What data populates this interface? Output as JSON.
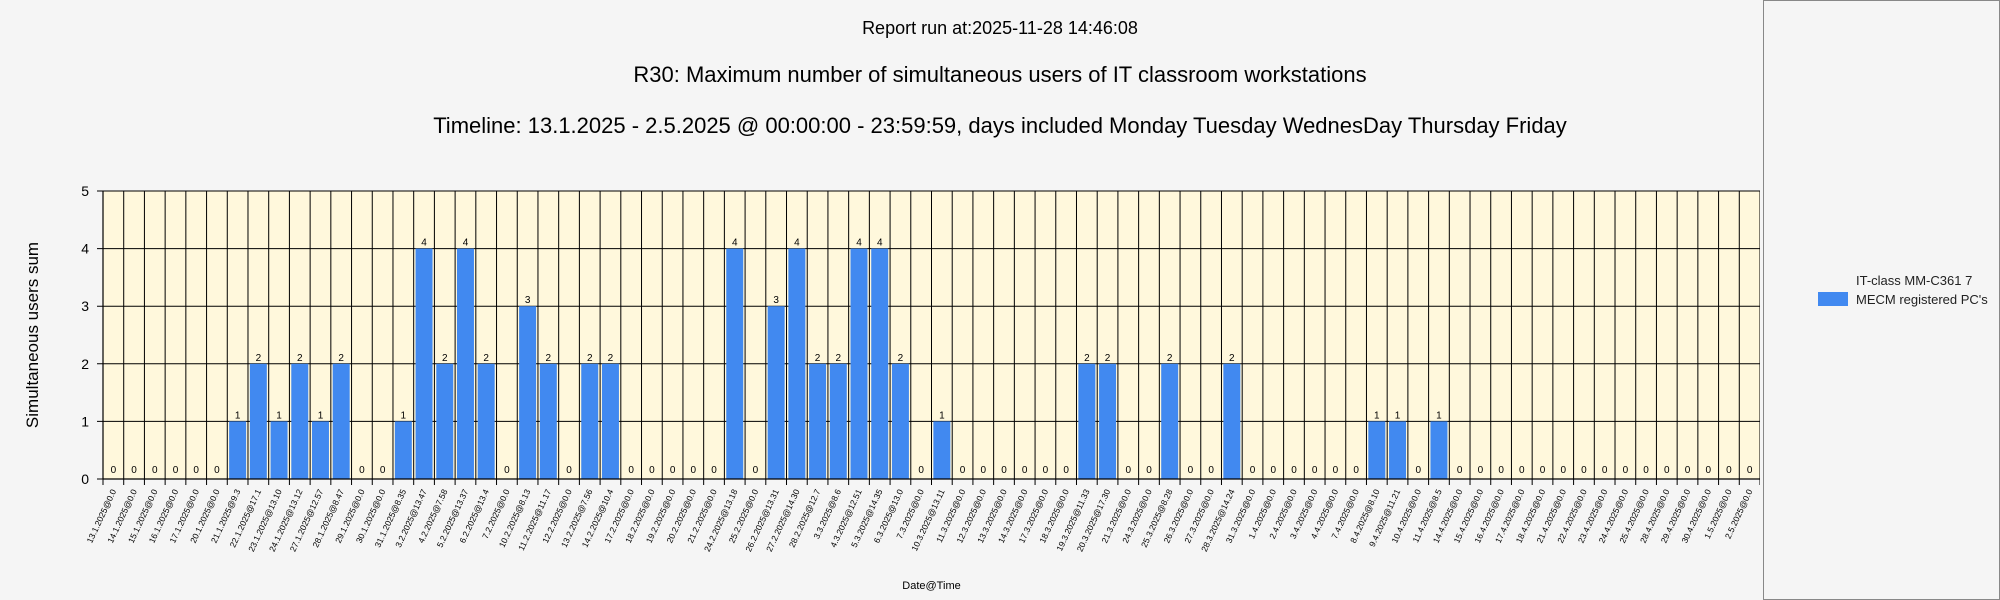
{
  "report_header": "Report run at:2025-11-28 14:46:08",
  "chart_data": {
    "type": "bar",
    "title": "R30: Maximum number of simultaneous users of IT classroom workstations",
    "subtitle": "Timeline: 13.1.2025  - 2.5.2025  @  00:00:00 -  23:59:59, days included Monday Tuesday WednesDay Thursday Friday",
    "xlabel": "Date@Time",
    "ylabel": "Simultaneous users sum",
    "ylim": [
      0,
      5
    ],
    "yticks": [
      "0",
      "1",
      "2",
      "3",
      "4",
      "5"
    ],
    "grid": true,
    "legend_position": "right",
    "colors": {
      "bar": "#4189f0",
      "plot_bg": "#fff8dc",
      "grid": "#000000"
    },
    "categories": [
      "13.1.2025@0.0",
      "14.1.2025@0.0",
      "15.1.2025@0.0",
      "16.1.2025@0.0",
      "17.1.2025@0.0",
      "20.1.2025@0.0",
      "21.1.2025@9.3",
      "22.1.2025@17.1",
      "23.1.2025@13.10",
      "24.1.2025@13.12",
      "27.1.2025@12.57",
      "28.1.2025@8.47",
      "29.1.2025@0.0",
      "30.1.2025@0.0",
      "31.1.2025@8.35",
      "3.2.2025@13.47",
      "4.2.2025@7.58",
      "5.2.2025@13.37",
      "6.2.2025@13.4",
      "7.2.2025@0.0",
      "10.2.2025@8.13",
      "11.2.2025@11.17",
      "12.2.2025@0.0",
      "13.2.2025@7.56",
      "14.2.2025@10.4",
      "17.2.2025@0.0",
      "18.2.2025@0.0",
      "19.2.2025@0.0",
      "20.2.2025@0.0",
      "21.2.2025@0.0",
      "24.2.2025@13.18",
      "25.2.2025@0.0",
      "26.2.2025@13.31",
      "27.2.2025@14.30",
      "28.2.2025@12.7",
      "3.3.2025@8.6",
      "4.3.2025@12.51",
      "5.3.2025@14.35",
      "6.3.2025@13.0",
      "7.3.2025@0.0",
      "10.3.2025@13.11",
      "11.3.2025@0.0",
      "12.3.2025@0.0",
      "13.3.2025@0.0",
      "14.3.2025@0.0",
      "17.3.2025@0.0",
      "18.3.2025@0.0",
      "19.3.2025@11.33",
      "20.3.2025@17.30",
      "21.3.2025@0.0",
      "24.3.2025@0.0",
      "25.3.2025@8.28",
      "26.3.2025@0.0",
      "27.3.2025@0.0",
      "28.3.2025@14.24",
      "31.3.2025@0.0",
      "1.4.2025@0.0",
      "2.4.2025@0.0",
      "3.4.2025@0.0",
      "4.4.2025@0.0",
      "7.4.2025@0.0",
      "8.4.2025@8.10",
      "9.4.2025@11.21",
      "10.4.2025@0.0",
      "11.4.2025@8.5",
      "14.4.2025@0.0",
      "15.4.2025@0.0",
      "16.4.2025@0.0",
      "17.4.2025@0.0",
      "18.4.2025@0.0",
      "21.4.2025@0.0",
      "22.4.2025@0.0",
      "23.4.2025@0.0",
      "24.4.2025@0.0",
      "25.4.2025@0.0",
      "28.4.2025@0.0",
      "29.4.2025@0.0",
      "30.4.2025@0.0",
      "1.5.2025@0.0",
      "2.5.2025@0.0"
    ],
    "series": [
      {
        "name": "IT-class MM-C361 7 MECM registered PC's",
        "values": [
          0,
          0,
          0,
          0,
          0,
          0,
          1,
          2,
          1,
          2,
          1,
          2,
          0,
          0,
          1,
          4,
          2,
          4,
          2,
          0,
          3,
          2,
          0,
          2,
          2,
          0,
          0,
          0,
          0,
          0,
          4,
          0,
          3,
          4,
          2,
          2,
          4,
          4,
          2,
          0,
          1,
          0,
          0,
          0,
          0,
          0,
          0,
          2,
          2,
          0,
          0,
          2,
          0,
          0,
          2,
          0,
          0,
          0,
          0,
          0,
          0,
          1,
          1,
          0,
          1,
          0,
          0,
          0,
          0,
          0,
          0,
          0,
          0,
          0,
          0,
          0,
          0,
          0,
          0,
          0
        ]
      }
    ]
  }
}
